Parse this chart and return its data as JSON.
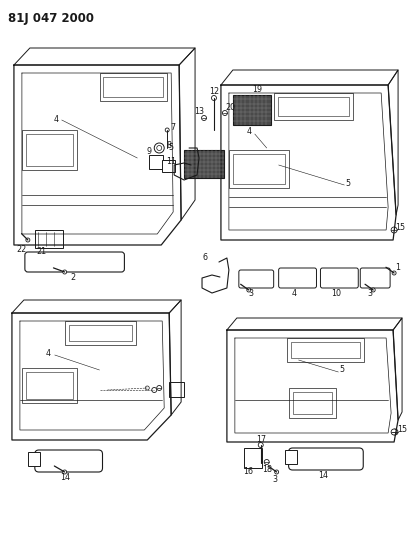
{
  "title": "81J 047 2000",
  "bg": "#ffffff",
  "lc": "#1a1a1a",
  "fig_w": 4.08,
  "fig_h": 5.33,
  "dpi": 100,
  "title_fs": 8.5,
  "lfs": 5.8,
  "lw": 0.7
}
